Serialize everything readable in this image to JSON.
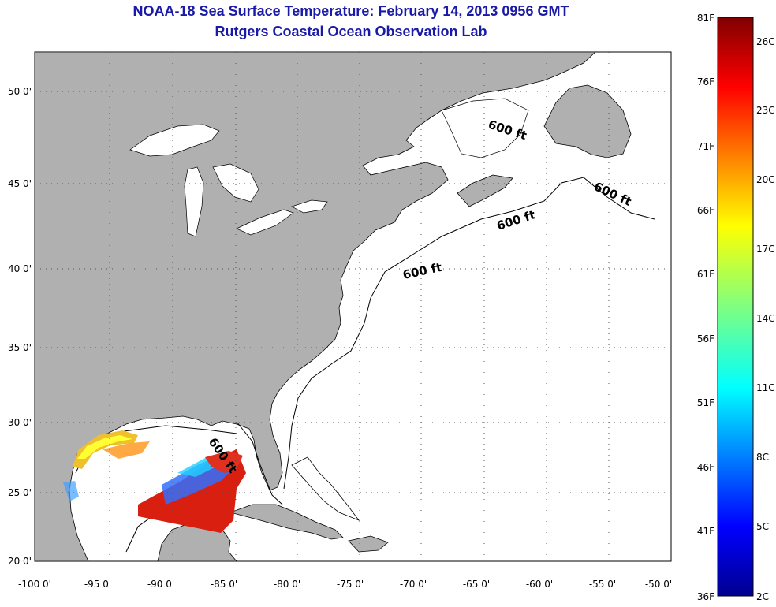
{
  "title": "NOAA-18 Sea Surface Temperature:  February 14, 2013 0956 GMT",
  "subtitle": "Rutgers Coastal Ocean Observation Lab",
  "axes": {
    "lon_ticks": [
      "-100 0'",
      "-95 0'",
      "-90 0'",
      "-85 0'",
      "-80 0'",
      "-75 0'",
      "-70 0'",
      "-65 0'",
      "-60 0'",
      "-55 0'",
      "-50 0'"
    ],
    "lat_ticks": [
      "50 0'",
      "45 0'",
      "40 0'",
      "35 0'",
      "30 0'",
      "25 0'",
      "20 0'"
    ]
  },
  "isobath_labels": [
    "600 ft",
    "600 ft",
    "600 ft",
    "600 ft",
    "600 ft"
  ],
  "colorbar": {
    "fahrenheit": [
      "81F",
      "76F",
      "71F",
      "66F",
      "61F",
      "56F",
      "51F",
      "46F",
      "41F",
      "36F"
    ],
    "celsius": [
      "26C",
      "23C",
      "20C",
      "17C",
      "14C",
      "11C",
      "8C",
      "5C",
      "2C"
    ]
  },
  "colors": {
    "land": "#b0b0b0",
    "ocean": "#ffffff",
    "title": "#1a1aa8",
    "grid": "#555555"
  }
}
